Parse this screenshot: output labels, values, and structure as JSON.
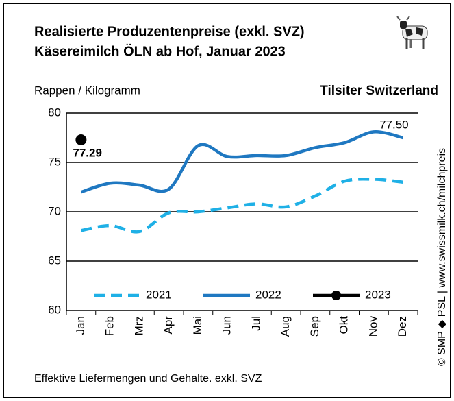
{
  "chart_data": {
    "type": "line",
    "title": "Realisierte Produzentenpreise (exkl. SVZ)",
    "subtitle": "Käsereimilch ÖLN ab Hof, Januar 2023",
    "y_label": "Rappen / Kilogramm",
    "product": "Tilsiter Switzerland",
    "source": "© SMP ◆ PSL | www.swissmilk.ch/milchpreis",
    "footnote": "Effektive Liefermengen und Gehalte. exkl. SVZ",
    "categories": [
      "Jan",
      "Feb",
      "Mrz",
      "Apr",
      "Mai",
      "Jun",
      "Jul",
      "Aug",
      "Sep",
      "Okt",
      "Nov",
      "Dez"
    ],
    "ylim": [
      60,
      80
    ],
    "yticks": [
      60,
      65,
      70,
      75,
      80
    ],
    "grid": true,
    "series": [
      {
        "name": "2021",
        "color": "#1fb0e6",
        "dashed": true,
        "values": [
          68.1,
          68.6,
          68.0,
          69.9,
          70.0,
          70.4,
          70.8,
          70.5,
          71.6,
          73.1,
          73.3,
          73.0
        ]
      },
      {
        "name": "2022",
        "color": "#1f78c1",
        "values": [
          72.0,
          72.9,
          72.7,
          72.3,
          76.7,
          75.6,
          75.7,
          75.7,
          76.5,
          77.0,
          78.1,
          77.5
        ],
        "value_labels": [
          null,
          null,
          null,
          null,
          null,
          null,
          null,
          null,
          null,
          null,
          null,
          "77.50"
        ]
      },
      {
        "name": "2023",
        "color": "#000000",
        "markers": true,
        "values": [
          77.29,
          null,
          null,
          null,
          null,
          null,
          null,
          null,
          null,
          null,
          null,
          null
        ],
        "value_labels": [
          "77.29",
          null,
          null,
          null,
          null,
          null,
          null,
          null,
          null,
          null,
          null,
          null
        ]
      }
    ]
  }
}
